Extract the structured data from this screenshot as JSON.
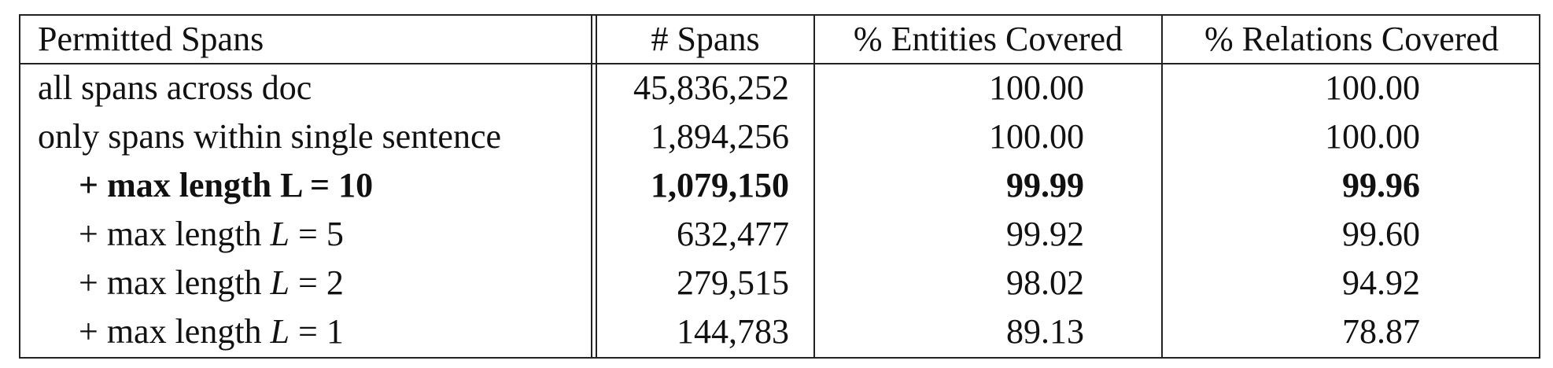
{
  "table": {
    "headers": {
      "permitted_spans": "Permitted Spans",
      "num_spans": "# Spans",
      "entities_covered": "% Entities Covered",
      "relations_covered": "% Relations Covered"
    },
    "rows": [
      {
        "label": "all spans across doc",
        "spans": "45,836,252",
        "entities": "100.00",
        "relations": "100.00"
      },
      {
        "label": "only spans within single sentence",
        "spans": "1,894,256",
        "entities": "100.00",
        "relations": "100.00"
      },
      {
        "label_prefix": "+ max length L = ",
        "label_value": "10",
        "spans": "1,079,150",
        "entities": "99.99",
        "relations": "99.96"
      },
      {
        "label_prefix": "+ max length ",
        "label_var": "L",
        "label_eq": " = ",
        "label_value": "5",
        "spans": "632,477",
        "entities": "99.92",
        "relations": "99.60"
      },
      {
        "label_prefix": "+ max length ",
        "label_var": "L",
        "label_eq": " = ",
        "label_value": "2",
        "spans": "279,515",
        "entities": "98.02",
        "relations": "94.92"
      },
      {
        "label_prefix": "+ max length ",
        "label_var": "L",
        "label_eq": " = ",
        "label_value": "1",
        "spans": "144,783",
        "entities": "89.13",
        "relations": "78.87"
      }
    ]
  }
}
